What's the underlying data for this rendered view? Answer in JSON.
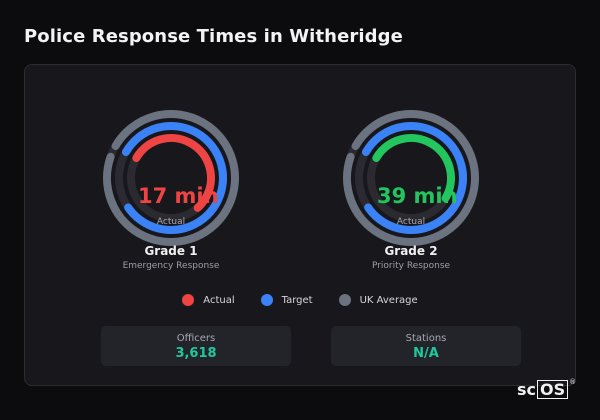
{
  "title": "Police Response Times in Witheridge",
  "gauges": [
    {
      "value_text": "17 min",
      "sub_label": "Actual",
      "title": "Grade 1",
      "caption": "Emergency Response",
      "value_color": "#ef4444",
      "actual_fraction": 0.55,
      "target_fraction": 0.82,
      "avg_fraction": 0.97
    },
    {
      "value_text": "39 min",
      "sub_label": "Actual",
      "title": "Grade 2",
      "caption": "Priority Response",
      "value_color": "#22c55e",
      "actual_fraction": 0.5,
      "target_fraction": 0.82,
      "avg_fraction": 0.97
    }
  ],
  "legend": [
    {
      "label": "Actual",
      "color": "#ef4444"
    },
    {
      "label": "Target",
      "color": "#3b82f6"
    },
    {
      "label": "UK Average",
      "color": "#6b7280"
    }
  ],
  "stats": [
    {
      "label": "Officers",
      "value": "3,618"
    },
    {
      "label": "Stations",
      "value": "N/A"
    }
  ],
  "brand": {
    "prefix": "sc",
    "boxed": "OS",
    "mark": "®"
  }
}
